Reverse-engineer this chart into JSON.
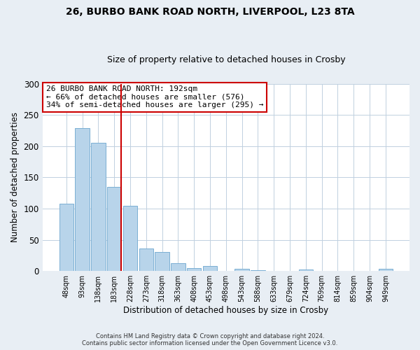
{
  "title": "26, BURBO BANK ROAD NORTH, LIVERPOOL, L23 8TA",
  "subtitle": "Size of property relative to detached houses in Crosby",
  "xlabel": "Distribution of detached houses by size in Crosby",
  "ylabel": "Number of detached properties",
  "bar_color": "#b8d4ea",
  "bar_edge_color": "#7aafd4",
  "vline_color": "#cc0000",
  "vline_x_index": 3,
  "annotation_line1": "26 BURBO BANK ROAD NORTH: 192sqm",
  "annotation_line2": "← 66% of detached houses are smaller (576)",
  "annotation_line3": "34% of semi-detached houses are larger (295) →",
  "categories": [
    "48sqm",
    "93sqm",
    "138sqm",
    "183sqm",
    "228sqm",
    "273sqm",
    "318sqm",
    "363sqm",
    "408sqm",
    "453sqm",
    "498sqm",
    "543sqm",
    "588sqm",
    "633sqm",
    "679sqm",
    "724sqm",
    "769sqm",
    "814sqm",
    "859sqm",
    "904sqm",
    "949sqm"
  ],
  "values": [
    108,
    229,
    205,
    135,
    104,
    36,
    30,
    13,
    5,
    8,
    0,
    4,
    1,
    0,
    0,
    2,
    0,
    0,
    0,
    0,
    4
  ],
  "ylim": [
    0,
    300
  ],
  "yticks": [
    0,
    50,
    100,
    150,
    200,
    250,
    300
  ],
  "footer_line1": "Contains HM Land Registry data © Crown copyright and database right 2024.",
  "footer_line2": "Contains public sector information licensed under the Open Government Licence v3.0.",
  "background_color": "#e8eef4",
  "plot_bg_color": "#ffffff",
  "grid_color": "#c0d0e0"
}
